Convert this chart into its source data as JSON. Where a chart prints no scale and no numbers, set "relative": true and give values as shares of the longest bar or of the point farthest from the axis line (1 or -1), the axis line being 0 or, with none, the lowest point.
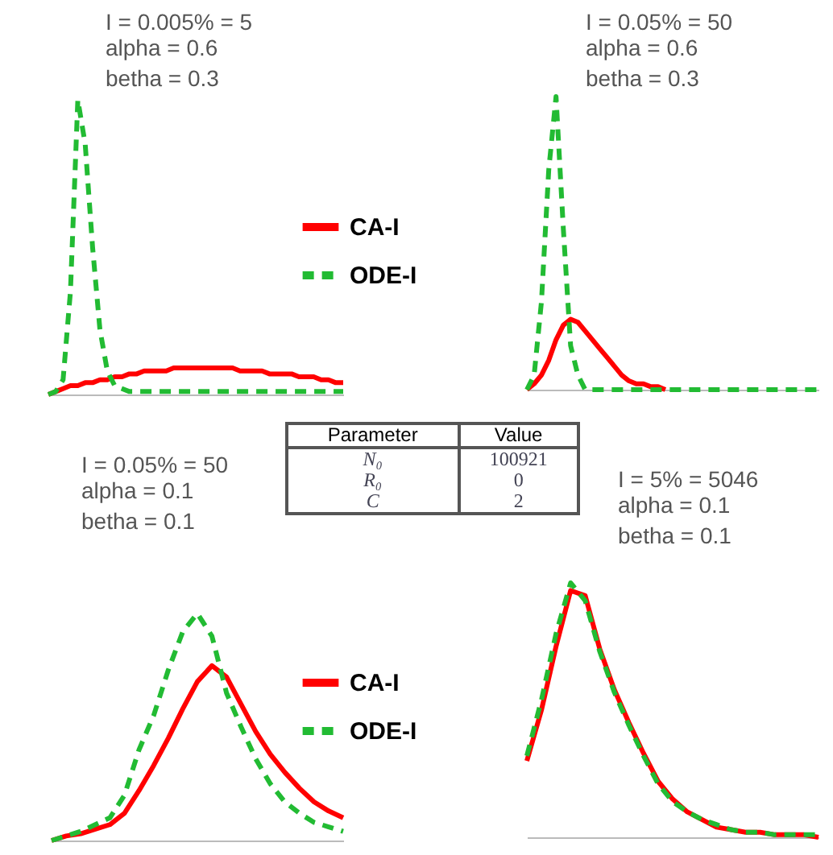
{
  "chart_data": [
    {
      "type": "line",
      "relative": true,
      "title": "I = 0.005% = 5",
      "subtitle": "alpha = 0.6\nbetha = 0.3",
      "legend": "right",
      "tick_labels": false,
      "categories": [
        null,
        null,
        null,
        null,
        null,
        null,
        null,
        null,
        null,
        null,
        null,
        null,
        null,
        null,
        null,
        null,
        null,
        null,
        null,
        null,
        null,
        null,
        null,
        null,
        null,
        null,
        null,
        null,
        null,
        null,
        null,
        null,
        null,
        null,
        null,
        null,
        null,
        null,
        null,
        null,
        null
      ],
      "series": [
        {
          "name": "CA-I",
          "color": "#ff0000",
          "line_style": "solid",
          "values": [
            0,
            0.01,
            0.02,
            0.03,
            0.03,
            0.04,
            0.04,
            0.05,
            0.05,
            0.06,
            0.06,
            0.07,
            0.07,
            0.08,
            0.08,
            0.08,
            0.08,
            0.09,
            0.09,
            0.09,
            0.09,
            0.09,
            0.09,
            0.09,
            0.09,
            0.09,
            0.08,
            0.08,
            0.08,
            0.08,
            0.07,
            0.07,
            0.07,
            0.07,
            0.06,
            0.06,
            0.06,
            0.05,
            0.05,
            0.04,
            0.04
          ]
        },
        {
          "name": "ODE-I",
          "color": "#22bb33",
          "line_style": "dashed",
          "values": [
            0,
            0.01,
            0.05,
            0.35,
            1,
            0.85,
            0.5,
            0.22,
            0.08,
            0.03,
            0.02,
            0.01,
            0.01,
            0.01,
            0.01,
            0.01,
            0.01,
            0.01,
            0.01,
            0.01,
            0.01,
            0.01,
            0.01,
            0.01,
            0.01,
            0.01,
            0.01,
            0.01,
            0.01,
            0.01,
            0.01,
            0.01,
            0.01,
            0.01,
            0.01,
            0.01,
            0.01,
            0.01,
            0.01,
            0.01,
            0.01
          ]
        }
      ]
    },
    {
      "type": "line",
      "relative": true,
      "title": "I = 0.05% = 50",
      "subtitle": "alpha = 0.6\nbetha = 0.3",
      "tick_labels": false,
      "categories": [
        null,
        null,
        null,
        null,
        null,
        null,
        null,
        null,
        null,
        null,
        null,
        null,
        null,
        null,
        null,
        null,
        null,
        null,
        null,
        null,
        null,
        null,
        null,
        null,
        null,
        null,
        null,
        null,
        null,
        null,
        null,
        null,
        null,
        null,
        null,
        null,
        null,
        null,
        null,
        null,
        null
      ],
      "series": [
        {
          "color": "#ff0000",
          "line_style": "solid",
          "values": [
            0,
            0.02,
            0.05,
            0.1,
            0.17,
            0.22,
            0.24,
            0.23,
            0.2,
            0.17,
            0.14,
            0.11,
            0.08,
            0.05,
            0.03,
            0.02,
            0.02,
            0.01,
            0.01,
            0,
            null,
            null,
            null,
            null,
            null,
            null,
            null,
            null,
            null,
            null,
            null,
            null,
            null,
            null,
            null,
            null,
            null,
            null,
            null,
            null,
            null
          ]
        },
        {
          "color": "#22bb33",
          "line_style": "dashed",
          "values": [
            0,
            0.05,
            0.3,
            0.75,
            1,
            0.55,
            0.15,
            0.05,
            0,
            0,
            0,
            0,
            0,
            0,
            0,
            0,
            0,
            0,
            0,
            0,
            0,
            0,
            0,
            0,
            0,
            0,
            0,
            0,
            0,
            0,
            0,
            0,
            0,
            0,
            0,
            0,
            0,
            0,
            0,
            0,
            0
          ]
        }
      ]
    },
    {
      "type": "line",
      "relative": true,
      "title": "I = 0.05% = 50",
      "subtitle": "alpha = 0.1\nbetha = 0.1",
      "legend": "right",
      "tick_labels": false,
      "categories": [
        null,
        null,
        null,
        null,
        null,
        null,
        null,
        null,
        null,
        null,
        null,
        null,
        null,
        null,
        null,
        null,
        null,
        null,
        null,
        null,
        null
      ],
      "series": [
        {
          "name": "CA-I",
          "color": "#ff0000",
          "line_style": "solid",
          "values": [
            0,
            0.02,
            0.03,
            0.05,
            0.07,
            0.12,
            0.22,
            0.33,
            0.45,
            0.58,
            0.7,
            0.77,
            0.72,
            0.6,
            0.48,
            0.38,
            0.3,
            0.23,
            0.17,
            0.13,
            0.1
          ]
        },
        {
          "name": "ODE-I",
          "color": "#22bb33",
          "line_style": "dashed",
          "values": [
            0,
            0.02,
            0.04,
            0.07,
            0.1,
            0.2,
            0.4,
            0.55,
            0.75,
            0.92,
            1,
            0.9,
            0.65,
            0.5,
            0.36,
            0.25,
            0.17,
            0.12,
            0.08,
            0.06,
            0.04
          ]
        }
      ]
    },
    {
      "type": "line",
      "relative": true,
      "title": "I = 5% = 5046",
      "subtitle": "alpha = 0.1\nbetha = 0.1",
      "tick_labels": false,
      "categories": [
        null,
        null,
        null,
        null,
        null,
        null,
        null,
        null,
        null,
        null,
        null,
        null,
        null,
        null,
        null,
        null,
        null,
        null,
        null,
        null,
        null
      ],
      "series": [
        {
          "color": "#ff0000",
          "line_style": "solid",
          "values": [
            0.3,
            0.5,
            0.75,
            0.97,
            0.95,
            0.74,
            0.58,
            0.45,
            0.33,
            0.22,
            0.15,
            0.1,
            0.07,
            0.04,
            0.03,
            0.02,
            0.02,
            0.01,
            0.01,
            0.01,
            0
          ]
        },
        {
          "color": "#22bb33",
          "line_style": "dashed",
          "values": [
            0.32,
            0.54,
            0.8,
            1,
            0.93,
            0.73,
            0.57,
            0.44,
            0.32,
            0.21,
            0.14,
            0.1,
            0.07,
            0.05,
            0.03,
            0.02,
            0.02,
            0.01,
            0.01,
            0.01,
            0.01
          ]
        }
      ]
    },
    {
      "type": "other",
      "annotations": [
        "Parameter",
        "Value",
        "N₀",
        "100921",
        "R₀",
        "0",
        "C",
        "2"
      ]
    }
  ]
}
